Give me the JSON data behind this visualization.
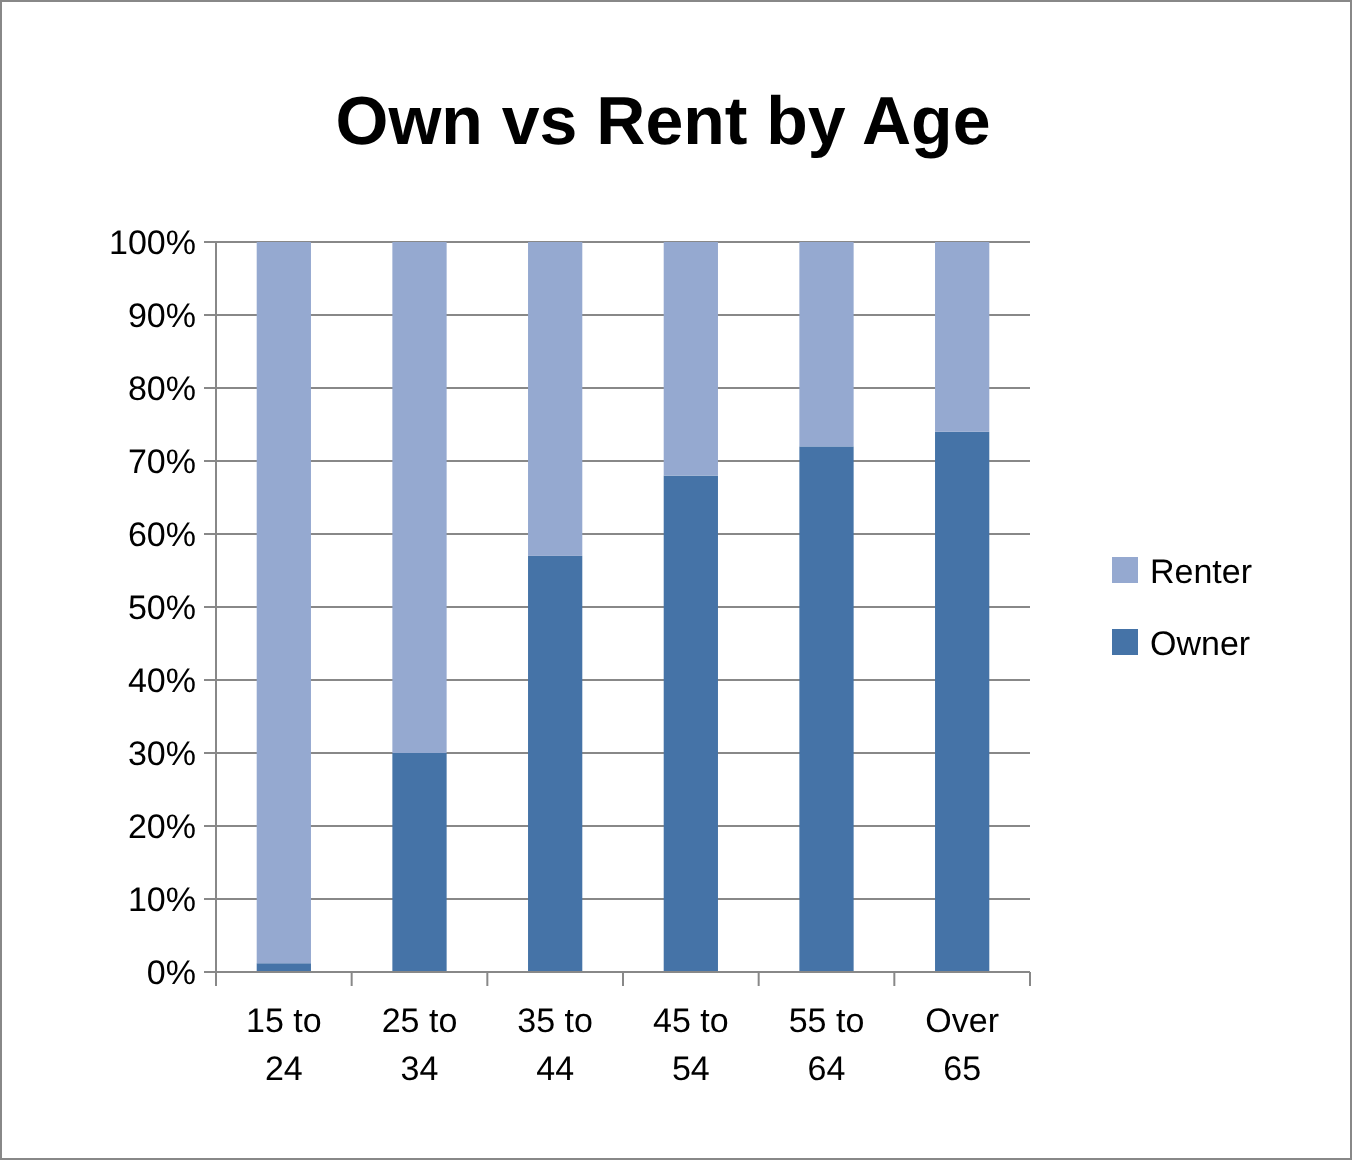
{
  "chart_data": {
    "type": "bar",
    "title": "Own vs Rent by Age",
    "categories": [
      "15 to 24",
      "25 to 34",
      "35 to 44",
      "45 to 54",
      "55 to 64",
      "Over 65"
    ],
    "stacked": true,
    "series": [
      {
        "name": "Owner",
        "color": "#4573a7",
        "values": [
          1.2,
          30,
          57,
          68,
          72,
          74
        ]
      },
      {
        "name": "Renter",
        "color": "#95a9d0",
        "values": [
          98.8,
          70,
          43,
          32,
          28,
          26
        ]
      }
    ],
    "ylim": [
      0,
      100
    ],
    "yticks": [
      {
        "value": 0,
        "label": "0%"
      },
      {
        "value": 10,
        "label": "10%"
      },
      {
        "value": 20,
        "label": "20%"
      },
      {
        "value": 30,
        "label": "30%"
      },
      {
        "value": 40,
        "label": "40%"
      },
      {
        "value": 50,
        "label": "50%"
      },
      {
        "value": 60,
        "label": "60%"
      },
      {
        "value": 70,
        "label": "70%"
      },
      {
        "value": 80,
        "label": "80%"
      },
      {
        "value": 90,
        "label": "90%"
      },
      {
        "value": 100,
        "label": "100%"
      }
    ],
    "grid": "y",
    "legend": "right"
  }
}
